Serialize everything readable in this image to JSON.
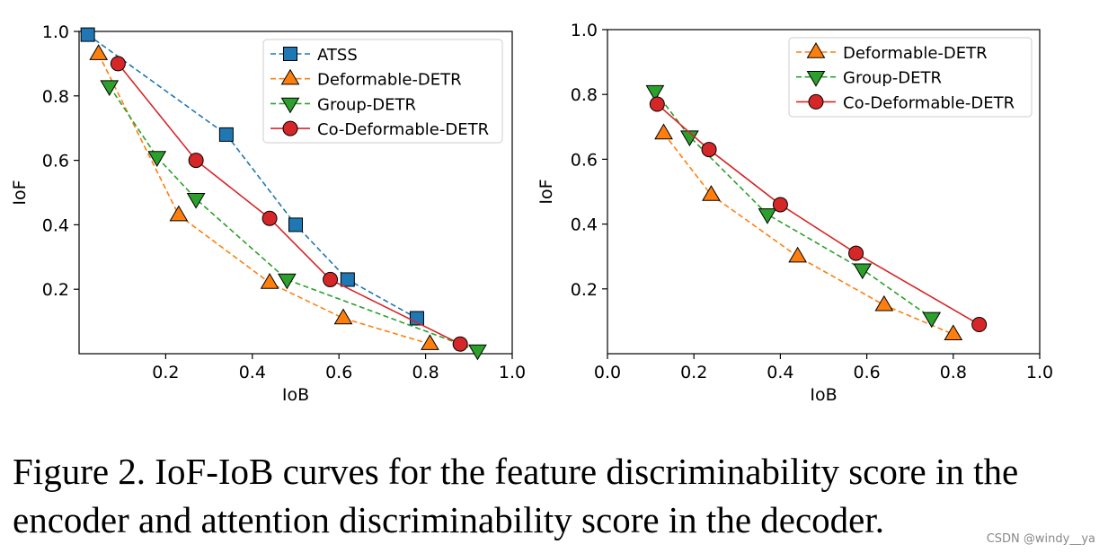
{
  "chart_data": [
    {
      "type": "line",
      "xlabel": "IoB",
      "ylabel": "IoF",
      "xlim": [
        0.0,
        1.0
      ],
      "ylim": [
        0.0,
        1.0
      ],
      "xticks": [
        0.2,
        0.4,
        0.6,
        0.8,
        1.0
      ],
      "xtick_labels": [
        "0.2",
        "0.4",
        "0.6",
        "0.8",
        "1.0"
      ],
      "yticks": [
        0.2,
        0.4,
        0.6,
        0.8,
        1.0
      ],
      "ytick_labels": [
        "0.2",
        "0.4",
        "0.6",
        "0.8",
        "1.0"
      ],
      "grid": false,
      "legend_position": "top-right",
      "series": [
        {
          "name": "ATSS",
          "color": "#1f77b4",
          "line": "dashed",
          "marker": "square",
          "x": [
            0.02,
            0.34,
            0.5,
            0.62,
            0.78
          ],
          "y": [
            0.99,
            0.68,
            0.4,
            0.23,
            0.11
          ]
        },
        {
          "name": "Deformable-DETR",
          "color": "#ff7f0e",
          "line": "dashed",
          "marker": "triangle-up",
          "x": [
            0.045,
            0.23,
            0.44,
            0.61,
            0.81
          ],
          "y": [
            0.93,
            0.43,
            0.22,
            0.11,
            0.03
          ]
        },
        {
          "name": "Group-DETR",
          "color": "#2ca02c",
          "line": "dashed",
          "marker": "triangle-down",
          "x": [
            0.07,
            0.18,
            0.27,
            0.48,
            0.92
          ],
          "y": [
            0.83,
            0.61,
            0.48,
            0.23,
            0.01
          ]
        },
        {
          "name": "Co-Deformable-DETR",
          "color": "#d62728",
          "line": "solid",
          "marker": "circle",
          "x": [
            0.09,
            0.27,
            0.44,
            0.58,
            0.88
          ],
          "y": [
            0.9,
            0.6,
            0.42,
            0.23,
            0.03
          ]
        }
      ]
    },
    {
      "type": "line",
      "xlabel": "IoB",
      "ylabel": "IoF",
      "xlim": [
        0.0,
        1.0
      ],
      "ylim": [
        0.0,
        1.0
      ],
      "xticks": [
        0.0,
        0.2,
        0.4,
        0.6,
        0.8,
        1.0
      ],
      "xtick_labels": [
        "0.0",
        "0.2",
        "0.4",
        "0.6",
        "0.8",
        "1.0"
      ],
      "yticks": [
        0.2,
        0.4,
        0.6,
        0.8,
        1.0
      ],
      "ytick_labels": [
        "0.2",
        "0.4",
        "0.6",
        "0.8",
        "1.0"
      ],
      "grid": false,
      "legend_position": "top-right",
      "series": [
        {
          "name": "Deformable-DETR",
          "color": "#ff7f0e",
          "line": "dashed",
          "marker": "triangle-up",
          "x": [
            0.13,
            0.24,
            0.44,
            0.64,
            0.8
          ],
          "y": [
            0.68,
            0.49,
            0.3,
            0.15,
            0.06
          ]
        },
        {
          "name": "Group-DETR",
          "color": "#2ca02c",
          "line": "dashed",
          "marker": "triangle-down",
          "x": [
            0.11,
            0.19,
            0.37,
            0.59,
            0.75
          ],
          "y": [
            0.81,
            0.67,
            0.43,
            0.26,
            0.11
          ]
        },
        {
          "name": "Co-Deformable-DETR",
          "color": "#d62728",
          "line": "solid",
          "marker": "circle",
          "x": [
            0.115,
            0.235,
            0.4,
            0.575,
            0.86
          ],
          "y": [
            0.77,
            0.63,
            0.46,
            0.31,
            0.09
          ]
        }
      ]
    }
  ],
  "caption": {
    "text": "Figure 2. IoF-IoB curves for the feature discriminability score in the encoder and attention discriminability score in the decoder."
  },
  "watermark": "CSDN @windy__ya"
}
